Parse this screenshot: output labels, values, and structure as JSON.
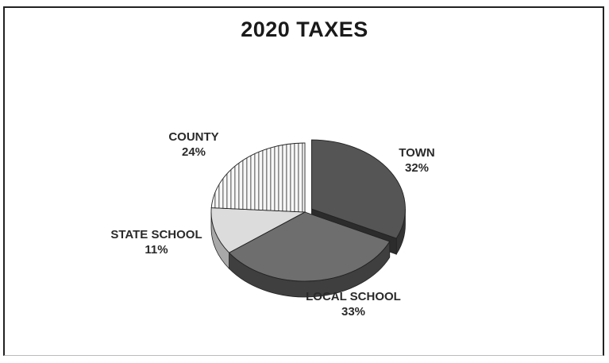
{
  "chart_data": {
    "type": "pie",
    "title": "2020 TAXES",
    "slices": [
      {
        "label": "TOWN",
        "value": 32,
        "value_label": "32%",
        "color": "#555555",
        "side_color": "#333333"
      },
      {
        "label": "LOCAL SCHOOL",
        "value": 33,
        "value_label": "33%",
        "color": "#6e6e6e",
        "side_color": "#3f3f3f"
      },
      {
        "label": "STATE SCHOOL",
        "value": 11,
        "value_label": "11%",
        "color": "#dcdcdc",
        "side_color": "#a9a9a9"
      },
      {
        "label": "COUNTY",
        "value": 24,
        "value_label": "24%",
        "color": "#f4f4f4",
        "side_color": "#c4c4c4",
        "pattern": "vertical-stripes"
      }
    ],
    "exploded_slice": "TOWN",
    "legend": "none"
  }
}
